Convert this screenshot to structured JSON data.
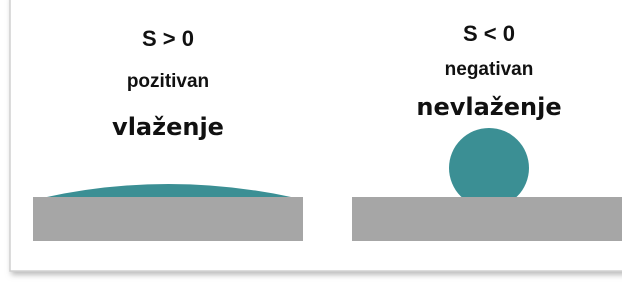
{
  "panels": [
    {
      "sign": "S > 0",
      "kind": "pozitivan",
      "label": "vlaženje"
    },
    {
      "sign": "S < 0",
      "kind": "negativan",
      "label": "nevlaženje"
    }
  ]
}
